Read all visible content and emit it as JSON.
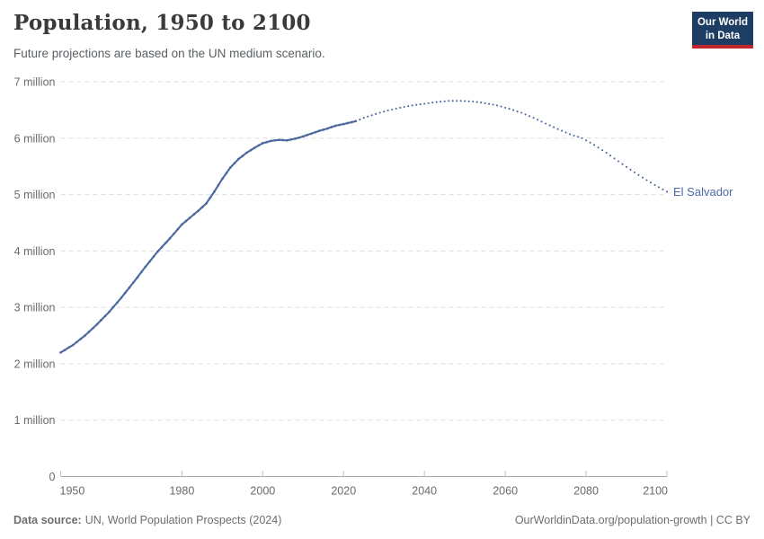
{
  "header": {
    "title": "Population, 1950 to 2100",
    "subtitle": "Future projections are based on the UN medium scenario."
  },
  "logo": {
    "line1": "Our World",
    "line2": "in Data",
    "bg_color": "#1d3d63",
    "accent_color": "#c0262d"
  },
  "footer": {
    "source_label": "Data source:",
    "source_value": "UN, World Population Prospects (2024)",
    "credit": "OurWorldinData.org/population-growth | CC BY"
  },
  "chart_data": {
    "type": "line",
    "title": "Population, 1950 to 2100",
    "subtitle": "Future projections are based on the UN medium scenario.",
    "entity_label": "El Salvador",
    "unit": "people",
    "y_unit_suffix": " million",
    "zero_tick_label": "0",
    "xlim": [
      1950,
      2100
    ],
    "ylim": [
      0,
      7
    ],
    "x_ticks": [
      1950,
      1980,
      2000,
      2020,
      2040,
      2060,
      2080,
      2100
    ],
    "y_ticks": [
      0,
      1,
      2,
      3,
      4,
      5,
      6,
      7
    ],
    "grid": "horizontal-dashed",
    "legend_position": "end-of-line-label",
    "colors": {
      "line": "#4c689e",
      "entity_label": "#4d6ba8",
      "grid": "#dddddd",
      "axis": "#a8a8a8",
      "tick": "#c2c2c2",
      "tick_text": "#6b6b6b"
    },
    "series": [
      {
        "name": "estimates",
        "style": "solid-with-markers",
        "points": [
          [
            1950,
            2.2
          ],
          [
            1953,
            2.33
          ],
          [
            1956,
            2.5
          ],
          [
            1959,
            2.7
          ],
          [
            1962,
            2.92
          ],
          [
            1965,
            3.17
          ],
          [
            1968,
            3.44
          ],
          [
            1971,
            3.72
          ],
          [
            1974,
            3.99
          ],
          [
            1977,
            4.22
          ],
          [
            1980,
            4.47
          ],
          [
            1982,
            4.59
          ],
          [
            1984,
            4.71
          ],
          [
            1986,
            4.84
          ],
          [
            1988,
            5.05
          ],
          [
            1990,
            5.28
          ],
          [
            1992,
            5.48
          ],
          [
            1994,
            5.63
          ],
          [
            1996,
            5.74
          ],
          [
            1998,
            5.83
          ],
          [
            2000,
            5.91
          ],
          [
            2002,
            5.95
          ],
          [
            2004,
            5.97
          ],
          [
            2006,
            5.96
          ],
          [
            2008,
            5.99
          ],
          [
            2010,
            6.03
          ],
          [
            2012,
            6.08
          ],
          [
            2014,
            6.13
          ],
          [
            2016,
            6.17
          ],
          [
            2018,
            6.22
          ],
          [
            2020,
            6.25
          ],
          [
            2023,
            6.3
          ]
        ]
      },
      {
        "name": "UN medium scenario projection",
        "style": "dotted",
        "points": [
          [
            2023,
            6.3
          ],
          [
            2025,
            6.36
          ],
          [
            2028,
            6.43
          ],
          [
            2031,
            6.49
          ],
          [
            2034,
            6.54
          ],
          [
            2037,
            6.58
          ],
          [
            2040,
            6.61
          ],
          [
            2043,
            6.64
          ],
          [
            2046,
            6.66
          ],
          [
            2049,
            6.66
          ],
          [
            2052,
            6.65
          ],
          [
            2055,
            6.62
          ],
          [
            2058,
            6.58
          ],
          [
            2061,
            6.52
          ],
          [
            2064,
            6.45
          ],
          [
            2067,
            6.36
          ],
          [
            2070,
            6.26
          ],
          [
            2073,
            6.16
          ],
          [
            2076,
            6.07
          ],
          [
            2079,
            6.0
          ],
          [
            2082,
            5.88
          ],
          [
            2085,
            5.74
          ],
          [
            2088,
            5.59
          ],
          [
            2091,
            5.44
          ],
          [
            2094,
            5.3
          ],
          [
            2097,
            5.17
          ],
          [
            2100,
            5.05
          ]
        ]
      }
    ]
  }
}
